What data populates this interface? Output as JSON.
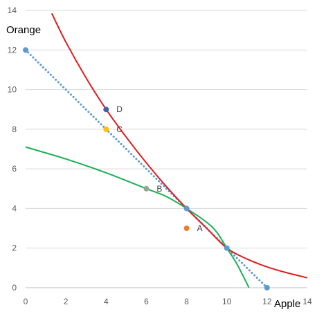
{
  "chart_data": {
    "type": "scatter",
    "xlabel": "Apple",
    "ylabel": "Orange",
    "xlim": [
      0,
      14
    ],
    "ylim": [
      0,
      14
    ],
    "xticks": [
      "0",
      "2",
      "4",
      "6",
      "8",
      "10",
      "12",
      "14"
    ],
    "yticks": [
      "0",
      "2",
      "4",
      "6",
      "8",
      "10",
      "12",
      "14"
    ],
    "grid": "horizontal",
    "legend": "none",
    "series": [
      {
        "style": "dotted-line",
        "color": "#5b9bd5",
        "x": [
          0,
          12
        ],
        "y": [
          12,
          0
        ],
        "endpoints": true
      },
      {
        "style": "curve",
        "color": "#e31a1c",
        "x": [
          1.3,
          2,
          3,
          4,
          5,
          6,
          7,
          8,
          9,
          10,
          11,
          12,
          13,
          14
        ],
        "y": [
          13.85,
          12.4,
          10.6,
          9.0,
          7.6,
          6.3,
          5.1,
          4.0,
          3.0,
          2.0,
          1.45,
          1.05,
          0.75,
          0.5
        ]
      },
      {
        "style": "curve",
        "color": "#1aaf54",
        "x": [
          0,
          2,
          4,
          6,
          7,
          8,
          9,
          9.5,
          10,
          10.5,
          11.1
        ],
        "y": [
          7.1,
          6.5,
          5.8,
          5.0,
          4.6,
          4.0,
          3.3,
          2.8,
          2.0,
          1.2,
          0
        ]
      }
    ],
    "points": [
      {
        "label": "A",
        "x": 8,
        "y": 3,
        "color": "#ed7d31"
      },
      {
        "label": "B",
        "x": 6,
        "y": 5,
        "color": "#8fa88f"
      },
      {
        "label": "C",
        "x": 4,
        "y": 8,
        "color": "#ffc000"
      },
      {
        "label": "D",
        "x": 4,
        "y": 9,
        "color": "#4060b0"
      },
      {
        "label": "",
        "x": 8,
        "y": 4,
        "color": "#5b9bd5"
      },
      {
        "label": "",
        "x": 10,
        "y": 2,
        "color": "#5b9bd5"
      }
    ],
    "gridColor": "#d9d9d9",
    "axisColor": "#bfbfbf"
  }
}
